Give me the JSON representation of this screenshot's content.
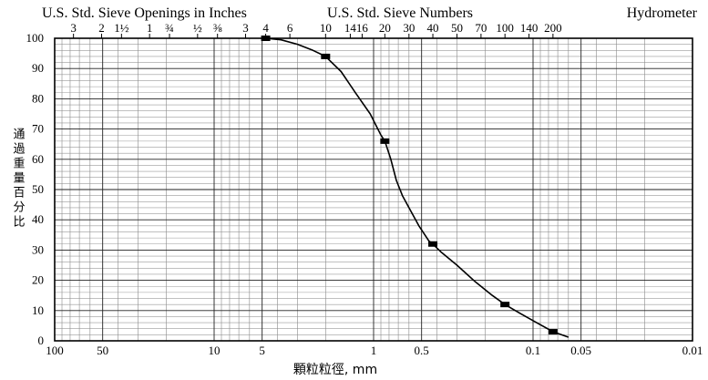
{
  "chart_data": {
    "type": "line",
    "x_scale": "log",
    "x_reversed": true,
    "xlim": [
      100,
      0.01
    ],
    "ylim": [
      0,
      100
    ],
    "grid": true,
    "legend": "none",
    "xlabel": "顆粒粒徑, mm",
    "ylabel": "通過重量百分比",
    "top_headers": {
      "sieve_openings": "U.S. Std. Sieve Openings in Inches",
      "sieve_numbers": "U.S. Std. Sieve Numbers",
      "hydrometer": "Hydrometer"
    },
    "x_ticks": [
      {
        "value": 100,
        "label": "100"
      },
      {
        "value": 50,
        "label": "50"
      },
      {
        "value": 10,
        "label": "10"
      },
      {
        "value": 5,
        "label": "5"
      },
      {
        "value": 1,
        "label": "1"
      },
      {
        "value": 0.5,
        "label": "0.5"
      },
      {
        "value": 0.1,
        "label": "0.1"
      },
      {
        "value": 0.05,
        "label": "0.05"
      },
      {
        "value": 0.01,
        "label": "0.01"
      }
    ],
    "y_ticks": [
      0,
      10,
      20,
      30,
      40,
      50,
      60,
      70,
      80,
      90,
      100
    ],
    "top_ticks": [
      {
        "value": 76.2,
        "label": "3"
      },
      {
        "value": 50.8,
        "label": "2"
      },
      {
        "value": 38.1,
        "label": "1½"
      },
      {
        "value": 25.4,
        "label": "1"
      },
      {
        "value": 19.05,
        "label": "¾"
      },
      {
        "value": 12.7,
        "label": "½"
      },
      {
        "value": 9.525,
        "label": "⅜"
      },
      {
        "value": 6.35,
        "label": "3"
      },
      {
        "value": 4.75,
        "label": "4"
      },
      {
        "value": 3.35,
        "label": "6"
      },
      {
        "value": 2.0,
        "label": "10"
      },
      {
        "value": 1.4,
        "label": "14"
      },
      {
        "value": 1.18,
        "label": "16"
      },
      {
        "value": 0.85,
        "label": "20"
      },
      {
        "value": 0.6,
        "label": "30"
      },
      {
        "value": 0.425,
        "label": "40"
      },
      {
        "value": 0.3,
        "label": "50"
      },
      {
        "value": 0.212,
        "label": "70"
      },
      {
        "value": 0.15,
        "label": "100"
      },
      {
        "value": 0.106,
        "label": "140"
      },
      {
        "value": 0.075,
        "label": "200"
      }
    ],
    "series": [
      {
        "points": [
          {
            "x": 4.75,
            "y": 100
          },
          {
            "x": 2.0,
            "y": 94
          },
          {
            "x": 0.85,
            "y": 66
          },
          {
            "x": 0.425,
            "y": 32
          },
          {
            "x": 0.15,
            "y": 12
          },
          {
            "x": 0.075,
            "y": 3
          }
        ],
        "curve": [
          [
            5.0,
            100
          ],
          [
            4.75,
            100
          ],
          [
            3.8,
            99.5
          ],
          [
            3.0,
            98
          ],
          [
            2.4,
            96
          ],
          [
            2.0,
            94
          ],
          [
            1.6,
            89
          ],
          [
            1.3,
            82
          ],
          [
            1.05,
            75
          ],
          [
            0.9,
            68
          ],
          [
            0.85,
            66
          ],
          [
            0.78,
            60
          ],
          [
            0.72,
            53
          ],
          [
            0.66,
            48
          ],
          [
            0.6,
            44
          ],
          [
            0.52,
            38
          ],
          [
            0.45,
            33
          ],
          [
            0.425,
            32
          ],
          [
            0.38,
            29.5
          ],
          [
            0.3,
            25
          ],
          [
            0.23,
            19.5
          ],
          [
            0.18,
            15
          ],
          [
            0.15,
            12
          ],
          [
            0.12,
            9
          ],
          [
            0.095,
            6
          ],
          [
            0.075,
            3
          ],
          [
            0.06,
            1.2
          ]
        ]
      }
    ]
  }
}
